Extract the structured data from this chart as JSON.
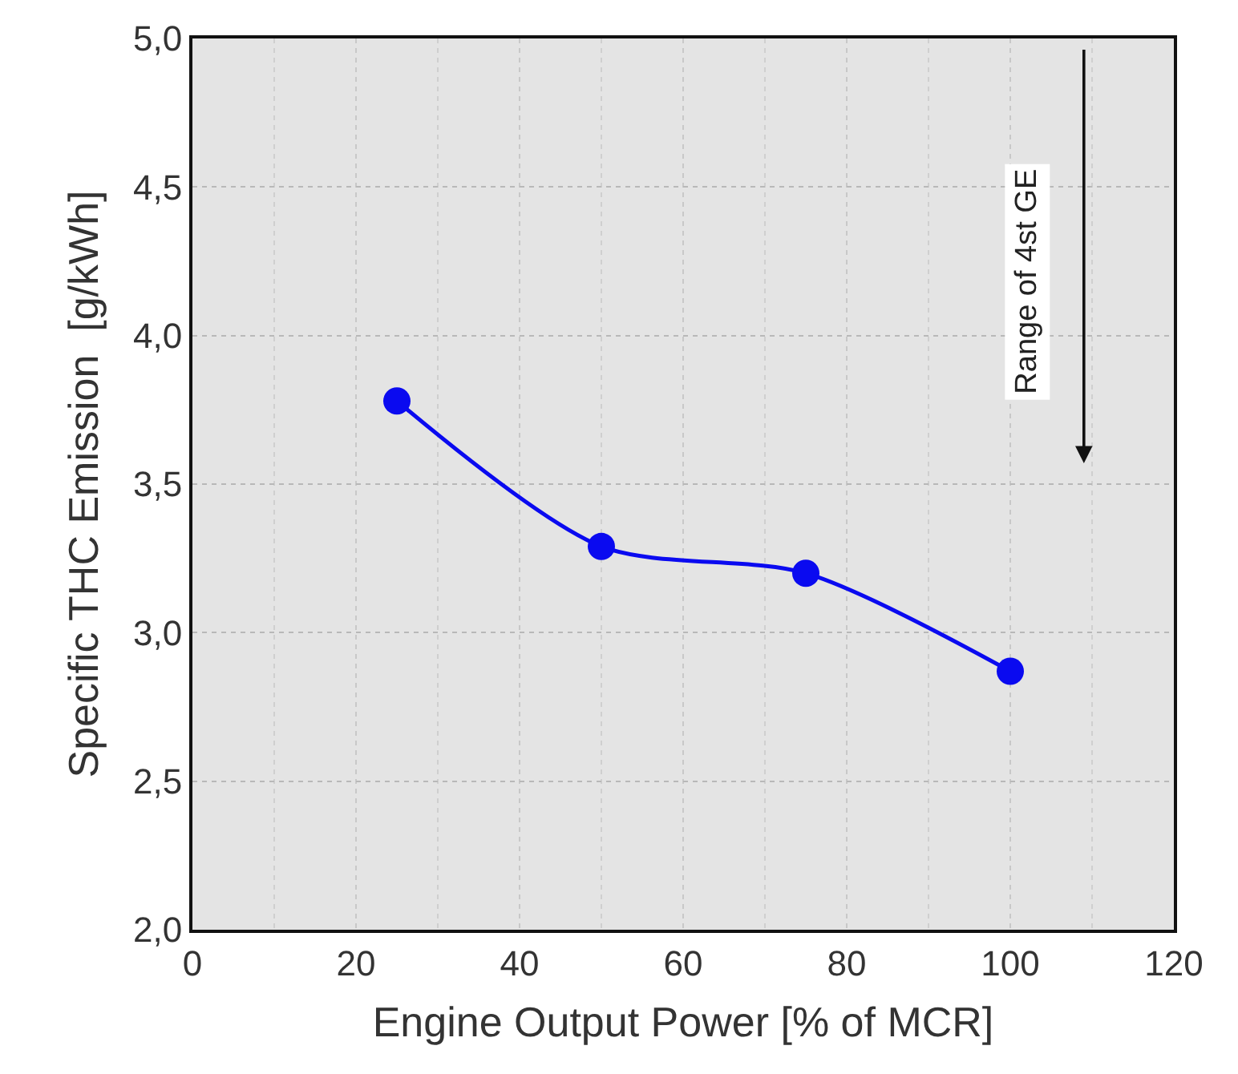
{
  "chart_data": {
    "type": "line",
    "xlabel": "Engine Output Power [% of MCR]",
    "ylabel": "Specific THC Emission  [g/kWh]",
    "x": [
      25,
      50,
      75,
      100
    ],
    "series": [
      {
        "color": "#0a0af0",
        "values": [
          3.78,
          3.29,
          3.2,
          2.87
        ]
      }
    ],
    "marker": "circle",
    "line_style": "solid",
    "grid": true,
    "xlim": [
      0,
      120
    ],
    "xticks": [
      0,
      20,
      40,
      60,
      80,
      100,
      120
    ],
    "ylim": [
      2,
      5
    ],
    "yticks": [
      {
        "value": 2,
        "label": "2,0"
      },
      {
        "value": 2.5,
        "label": "2,5"
      },
      {
        "value": 3,
        "label": "3,0"
      },
      {
        "value": 3.5,
        "label": "3,5"
      },
      {
        "value": 4,
        "label": "4,0"
      },
      {
        "value": 4.5,
        "label": "4,5"
      },
      {
        "value": 5,
        "label": "5,0"
      }
    ],
    "annotations": [
      "Range of 4st GE"
    ]
  }
}
